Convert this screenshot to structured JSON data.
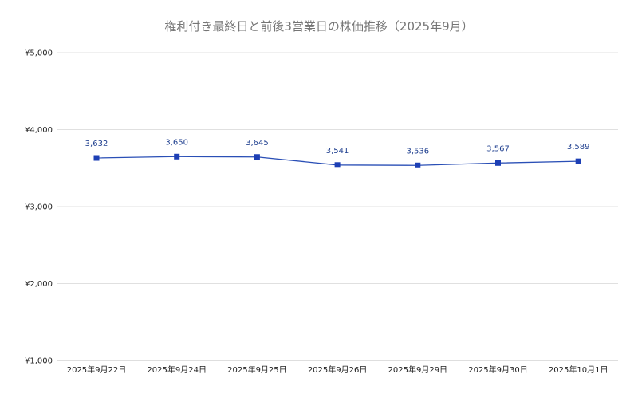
{
  "chart_data": {
    "type": "line",
    "title": "権利付き最終日と前後3営業日の株価推移（2025年9月）",
    "categories": [
      "2025年9月22日",
      "2025年9月24日",
      "2025年9月25日",
      "2025年9月26日",
      "2025年9月29日",
      "2025年9月30日",
      "2025年10月1日"
    ],
    "series": [
      {
        "values": [
          3632,
          3650,
          3645,
          3541,
          3536,
          3567,
          3589
        ],
        "labels": [
          "3,632",
          "3,650",
          "3,645",
          "3,541",
          "3,536",
          "3,567",
          "3,589"
        ],
        "color": "#1d3fb5"
      }
    ],
    "ylim": [
      1000,
      5000
    ],
    "yticks": [
      1000,
      2000,
      3000,
      4000,
      5000
    ],
    "ytick_labels": [
      "¥1,000",
      "¥2,000",
      "¥3,000",
      "¥4,000",
      "¥5,000"
    ],
    "grid": true,
    "legend": "none"
  }
}
